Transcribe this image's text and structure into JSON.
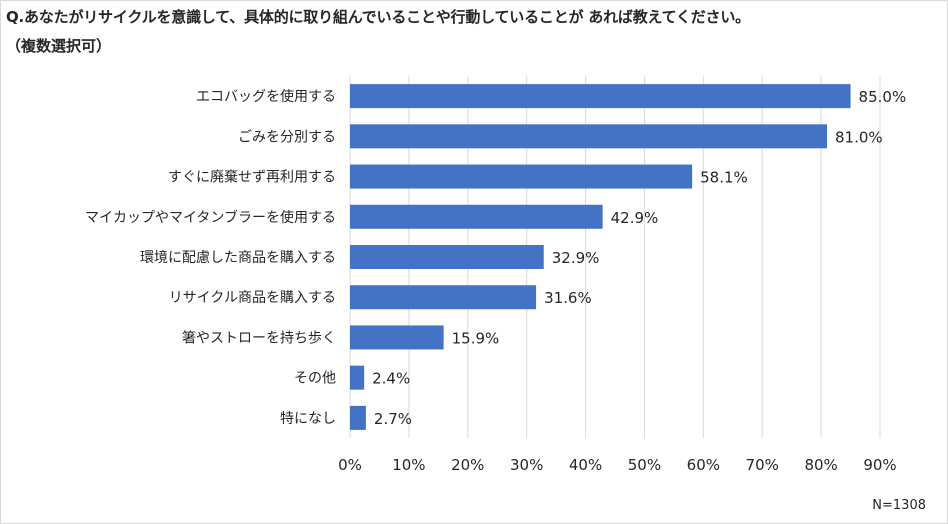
{
  "title": "Q.あなたがリサイクルを意識して、具体的に取り組んでいることや行動していることが あれば教えてください。",
  "subtitle": "（複数選択可）",
  "note": "N=1308",
  "colors": {
    "bar": "#4472c4",
    "grid": "#d9d9d9",
    "text": "#262626"
  },
  "chart_data": {
    "type": "bar",
    "orientation": "horizontal",
    "categories": [
      "エコバッグを使用する",
      "ごみを分別する",
      "すぐに廃棄せず再利用する",
      "マイカップやマイタンブラーを使用する",
      "環境に配慮した商品を購入する",
      "リサイクル商品を購入する",
      "箸やストローを持ち歩く",
      "その他",
      "特になし"
    ],
    "values": [
      85.0,
      81.0,
      58.1,
      42.9,
      32.9,
      31.6,
      15.9,
      2.4,
      2.7
    ],
    "data_labels": [
      "85.0%",
      "81.0%",
      "58.1%",
      "42.9%",
      "32.9%",
      "31.6%",
      "15.9%",
      "2.4%",
      "2.7%"
    ],
    "xlim": [
      0,
      90
    ],
    "x_ticks": [
      "0%",
      "10%",
      "20%",
      "30%",
      "40%",
      "50%",
      "60%",
      "70%",
      "80%",
      "90%"
    ],
    "grid": "vertical",
    "legend": "none"
  }
}
